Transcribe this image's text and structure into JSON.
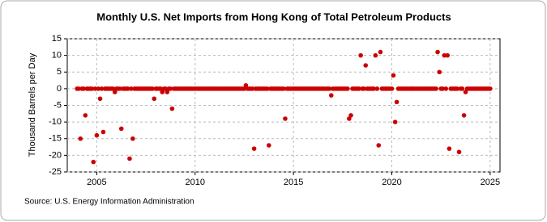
{
  "chart_data": {
    "type": "scatter",
    "title": "Monthly U.S. Net Imports from Hong Kong of Total Petroleum Products",
    "y_label": "Thousand Barrels per Day",
    "source": "Source: U.S. Energy Information Administration",
    "color": "#cc0000",
    "grid": true,
    "xlim": [
      2003.5,
      2025.5
    ],
    "xticks": [
      2005,
      2010,
      2015,
      2020,
      2025
    ],
    "ylim": [
      -25,
      15
    ],
    "yticks": [
      -25,
      -20,
      -15,
      -10,
      -5,
      0,
      5,
      10,
      15
    ],
    "x": [
      2004,
      2004.08,
      2004.17,
      2004.25,
      2004.33,
      2004.42,
      2004.5,
      2004.58,
      2004.67,
      2004.75,
      2004.83,
      2004.92,
      2005,
      2005.08,
      2005.17,
      2005.25,
      2005.33,
      2005.42,
      2005.5,
      2005.58,
      2005.67,
      2005.75,
      2005.83,
      2005.92,
      2006,
      2006.08,
      2006.17,
      2006.25,
      2006.33,
      2006.42,
      2006.5,
      2006.58,
      2006.67,
      2006.75,
      2006.83,
      2006.92,
      2007,
      2007.08,
      2007.17,
      2007.25,
      2007.33,
      2007.42,
      2007.5,
      2007.58,
      2007.67,
      2007.75,
      2007.83,
      2007.92,
      2008,
      2008.08,
      2008.17,
      2008.25,
      2008.33,
      2008.42,
      2008.5,
      2008.58,
      2008.67,
      2008.75,
      2008.83,
      2008.92,
      2009,
      2009.08,
      2009.17,
      2009.25,
      2009.33,
      2009.42,
      2009.5,
      2009.58,
      2009.67,
      2009.75,
      2009.83,
      2009.92,
      2010,
      2010.08,
      2010.17,
      2010.25,
      2010.33,
      2010.42,
      2010.5,
      2010.58,
      2010.67,
      2010.75,
      2010.83,
      2010.92,
      2011,
      2011.08,
      2011.17,
      2011.25,
      2011.33,
      2011.42,
      2011.5,
      2011.58,
      2011.67,
      2011.75,
      2011.83,
      2011.92,
      2012,
      2012.08,
      2012.17,
      2012.25,
      2012.33,
      2012.42,
      2012.5,
      2012.58,
      2012.67,
      2012.75,
      2012.83,
      2012.92,
      2013,
      2013.08,
      2013.17,
      2013.25,
      2013.33,
      2013.42,
      2013.5,
      2013.58,
      2013.67,
      2013.75,
      2013.83,
      2013.92,
      2014,
      2014.08,
      2014.17,
      2014.25,
      2014.33,
      2014.42,
      2014.5,
      2014.58,
      2014.67,
      2014.75,
      2014.83,
      2014.92,
      2015,
      2015.08,
      2015.17,
      2015.25,
      2015.33,
      2015.42,
      2015.5,
      2015.58,
      2015.67,
      2015.75,
      2015.83,
      2015.92,
      2016,
      2016.08,
      2016.17,
      2016.25,
      2016.33,
      2016.42,
      2016.5,
      2016.58,
      2016.67,
      2016.75,
      2016.83,
      2016.92,
      2017,
      2017.08,
      2017.17,
      2017.25,
      2017.33,
      2017.42,
      2017.5,
      2017.58,
      2017.67,
      2017.75,
      2017.83,
      2017.92,
      2018,
      2018.08,
      2018.17,
      2018.25,
      2018.33,
      2018.42,
      2018.5,
      2018.58,
      2018.67,
      2018.75,
      2018.83,
      2018.92,
      2019,
      2019.08,
      2019.17,
      2019.25,
      2019.33,
      2019.42,
      2019.5,
      2019.58,
      2019.67,
      2019.75,
      2019.83,
      2019.92,
      2020,
      2020.08,
      2020.17,
      2020.25,
      2020.33,
      2020.42,
      2020.5,
      2020.58,
      2020.67,
      2020.75,
      2020.83,
      2020.92,
      2021,
      2021.08,
      2021.17,
      2021.25,
      2021.33,
      2021.42,
      2021.5,
      2021.58,
      2021.67,
      2021.75,
      2021.83,
      2021.92,
      2022,
      2022.08,
      2022.17,
      2022.25,
      2022.33,
      2022.42,
      2022.5,
      2022.58,
      2022.67,
      2022.75,
      2022.83,
      2022.92,
      2023,
      2023.08,
      2023.17,
      2023.25,
      2023.33,
      2023.42,
      2023.5,
      2023.58,
      2023.67,
      2023.75,
      2023.83,
      2023.92,
      2024,
      2024.08,
      2024.17,
      2024.25,
      2024.33,
      2024.42,
      2024.5,
      2024.58,
      2024.67,
      2024.75,
      2024.83,
      2024.92,
      2025
    ],
    "values": [
      0,
      0,
      -15,
      0,
      0,
      -8,
      0,
      0,
      0,
      0,
      -22,
      0,
      -14,
      0,
      -3,
      0,
      -13,
      0,
      0,
      0,
      0,
      0,
      0,
      -1,
      0,
      0,
      0,
      -12,
      0,
      0,
      0,
      0,
      -21,
      0,
      -15,
      0,
      0,
      0,
      0,
      0,
      0,
      0,
      0,
      0,
      0,
      0,
      0,
      -3,
      0,
      0,
      0,
      0,
      -1,
      0,
      0,
      -1,
      0,
      0,
      -6,
      0,
      0,
      0,
      0,
      0,
      0,
      0,
      0,
      0,
      0,
      0,
      0,
      0,
      0,
      0,
      0,
      0,
      0,
      0,
      0,
      0,
      0,
      0,
      0,
      0,
      0,
      0,
      0,
      0,
      0,
      0,
      0,
      0,
      0,
      0,
      0,
      0,
      0,
      0,
      0,
      0,
      0,
      0,
      0,
      1,
      0,
      0,
      0,
      0,
      -18,
      0,
      0,
      0,
      0,
      0,
      0,
      0,
      0,
      -17,
      0,
      0,
      0,
      0,
      0,
      0,
      0,
      0,
      0,
      -9,
      0,
      0,
      0,
      0,
      0,
      0,
      0,
      0,
      0,
      0,
      0,
      0,
      0,
      0,
      0,
      0,
      0,
      0,
      0,
      0,
      0,
      0,
      0,
      0,
      0,
      0,
      0,
      -2,
      0,
      0,
      0,
      0,
      0,
      0,
      0,
      0,
      0,
      0,
      -9,
      -8,
      0,
      0,
      0,
      0,
      0,
      10,
      0,
      0,
      7,
      0,
      0,
      0,
      0,
      0,
      10,
      0,
      -17,
      11,
      0,
      0,
      0,
      0,
      0,
      0,
      0,
      4,
      -10,
      -4,
      0,
      0,
      0,
      0,
      0,
      0,
      0,
      0,
      0,
      0,
      0,
      0,
      0,
      0,
      0,
      0,
      0,
      0,
      0,
      0,
      0,
      0,
      0,
      0,
      11,
      5,
      0,
      0,
      10,
      0,
      10,
      -18,
      0,
      0,
      0,
      0,
      0,
      -19,
      0,
      0,
      -8,
      -1,
      0,
      0,
      0,
      0,
      0,
      0,
      0,
      0,
      0,
      0,
      0,
      0,
      0,
      0,
      0
    ]
  }
}
